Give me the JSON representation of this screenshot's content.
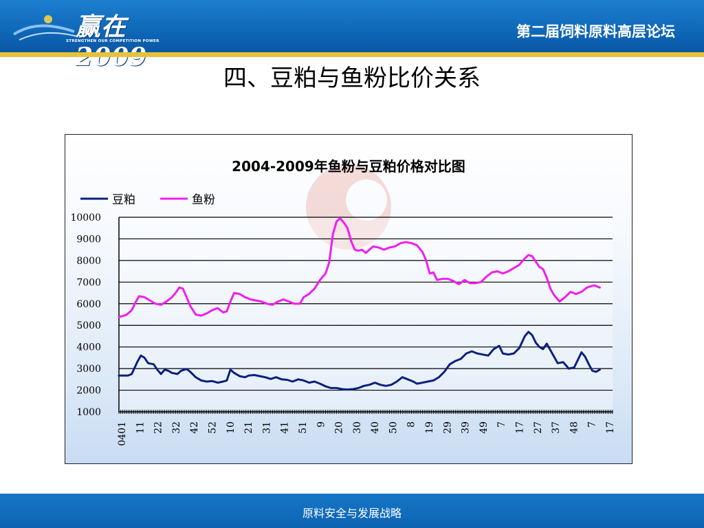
{
  "header": {
    "logo_text": "赢在2009",
    "logo_subtitle": "STRENGTHEN OUR COMPETITION POWER",
    "forum_title": "第二届饲料原料高层论坛"
  },
  "slide": {
    "title": "四、豆粕与鱼粉比价关系"
  },
  "footer": {
    "text": "原料安全与发展战略"
  },
  "colors": {
    "header_blue": "#1371c2",
    "accent_gold": "#e6c23a",
    "soybean_meal": "#0b1f7e",
    "fish_meal": "#f21cf0"
  },
  "chart_data": {
    "type": "line",
    "title": "2004-2009年鱼粉与豆粕价格对比图",
    "legend_position": "top-left",
    "grid": true,
    "ylim": [
      1000,
      10000
    ],
    "yticks": [
      1000,
      2000,
      3000,
      4000,
      5000,
      6000,
      7000,
      8000,
      9000,
      10000
    ],
    "xtick_labels": [
      "0401",
      "11",
      "22",
      "32",
      "42",
      "52",
      "10",
      "21",
      "31",
      "41",
      "51",
      "9",
      "20",
      "30",
      "40",
      "50",
      "8",
      "19",
      "29",
      "39",
      "49",
      "7",
      "17",
      "27",
      "37",
      "48",
      "7",
      "17"
    ],
    "xlim": [
      0,
      270
    ],
    "series": [
      {
        "name": "豆粕",
        "color": "#0b1f7e",
        "points": [
          [
            0,
            2680
          ],
          [
            5,
            2680
          ],
          [
            7,
            2750
          ],
          [
            10,
            3300
          ],
          [
            12,
            3600
          ],
          [
            14,
            3500
          ],
          [
            16,
            3250
          ],
          [
            19,
            3200
          ],
          [
            21,
            2950
          ],
          [
            23,
            2750
          ],
          [
            25,
            2950
          ],
          [
            27,
            2900
          ],
          [
            29,
            2800
          ],
          [
            32,
            2750
          ],
          [
            34,
            2900
          ],
          [
            37,
            2980
          ],
          [
            39,
            2850
          ],
          [
            42,
            2600
          ],
          [
            45,
            2450
          ],
          [
            48,
            2400
          ],
          [
            51,
            2420
          ],
          [
            54,
            2350
          ],
          [
            57,
            2400
          ],
          [
            59,
            2450
          ],
          [
            61,
            2950
          ],
          [
            63,
            2800
          ],
          [
            66,
            2650
          ],
          [
            69,
            2600
          ],
          [
            71,
            2680
          ],
          [
            74,
            2700
          ],
          [
            77,
            2650
          ],
          [
            80,
            2600
          ],
          [
            83,
            2520
          ],
          [
            86,
            2600
          ],
          [
            89,
            2500
          ],
          [
            92,
            2480
          ],
          [
            95,
            2400
          ],
          [
            98,
            2500
          ],
          [
            101,
            2450
          ],
          [
            104,
            2350
          ],
          [
            107,
            2400
          ],
          [
            110,
            2300
          ],
          [
            113,
            2180
          ],
          [
            116,
            2100
          ],
          [
            119,
            2100
          ],
          [
            122,
            2050
          ],
          [
            125,
            2030
          ],
          [
            128,
            2050
          ],
          [
            131,
            2100
          ],
          [
            134,
            2200
          ],
          [
            137,
            2250
          ],
          [
            140,
            2350
          ],
          [
            143,
            2250
          ],
          [
            146,
            2200
          ],
          [
            149,
            2250
          ],
          [
            152,
            2400
          ],
          [
            155,
            2600
          ],
          [
            158,
            2500
          ],
          [
            161,
            2400
          ],
          [
            163,
            2300
          ],
          [
            166,
            2350
          ],
          [
            169,
            2400
          ],
          [
            172,
            2450
          ],
          [
            175,
            2600
          ],
          [
            178,
            2850
          ],
          [
            181,
            3200
          ],
          [
            184,
            3350
          ],
          [
            187,
            3450
          ],
          [
            190,
            3700
          ],
          [
            193,
            3800
          ],
          [
            196,
            3700
          ],
          [
            199,
            3650
          ],
          [
            202,
            3600
          ],
          [
            205,
            3900
          ],
          [
            208,
            4050
          ],
          [
            210,
            3700
          ],
          [
            213,
            3650
          ],
          [
            216,
            3700
          ],
          [
            219,
            3950
          ],
          [
            222,
            4500
          ],
          [
            224,
            4700
          ],
          [
            226,
            4550
          ],
          [
            228,
            4200
          ],
          [
            230,
            4000
          ],
          [
            232,
            3900
          ],
          [
            234,
            4150
          ],
          [
            236,
            3850
          ],
          [
            238,
            3550
          ],
          [
            240,
            3250
          ],
          [
            243,
            3300
          ],
          [
            246,
            3000
          ],
          [
            249,
            3050
          ],
          [
            251,
            3400
          ],
          [
            253,
            3750
          ],
          [
            255,
            3550
          ],
          [
            257,
            3200
          ],
          [
            259,
            2900
          ],
          [
            261,
            2850
          ],
          [
            263,
            2950
          ]
        ]
      },
      {
        "name": "鱼粉",
        "color": "#f21cf0",
        "points": [
          [
            0,
            5380
          ],
          [
            4,
            5480
          ],
          [
            7,
            5700
          ],
          [
            9,
            6050
          ],
          [
            11,
            6350
          ],
          [
            14,
            6300
          ],
          [
            17,
            6150
          ],
          [
            20,
            6000
          ],
          [
            23,
            5950
          ],
          [
            26,
            6100
          ],
          [
            29,
            6300
          ],
          [
            31,
            6500
          ],
          [
            33,
            6750
          ],
          [
            35,
            6700
          ],
          [
            37,
            6300
          ],
          [
            39,
            5900
          ],
          [
            42,
            5500
          ],
          [
            45,
            5450
          ],
          [
            48,
            5550
          ],
          [
            51,
            5700
          ],
          [
            54,
            5800
          ],
          [
            57,
            5600
          ],
          [
            59,
            5650
          ],
          [
            61,
            6100
          ],
          [
            63,
            6500
          ],
          [
            66,
            6450
          ],
          [
            69,
            6300
          ],
          [
            72,
            6200
          ],
          [
            75,
            6150
          ],
          [
            78,
            6100
          ],
          [
            81,
            6000
          ],
          [
            84,
            5950
          ],
          [
            87,
            6100
          ],
          [
            90,
            6200
          ],
          [
            93,
            6100
          ],
          [
            96,
            6000
          ],
          [
            99,
            6000
          ],
          [
            101,
            6300
          ],
          [
            104,
            6450
          ],
          [
            107,
            6700
          ],
          [
            110,
            7100
          ],
          [
            113,
            7400
          ],
          [
            115,
            7900
          ],
          [
            117,
            9200
          ],
          [
            119,
            9800
          ],
          [
            121,
            9950
          ],
          [
            123,
            9750
          ],
          [
            125,
            9500
          ],
          [
            127,
            8900
          ],
          [
            129,
            8500
          ],
          [
            131,
            8450
          ],
          [
            133,
            8500
          ],
          [
            135,
            8350
          ],
          [
            137,
            8500
          ],
          [
            139,
            8650
          ],
          [
            142,
            8600
          ],
          [
            145,
            8500
          ],
          [
            148,
            8600
          ],
          [
            151,
            8650
          ],
          [
            154,
            8800
          ],
          [
            157,
            8850
          ],
          [
            160,
            8800
          ],
          [
            163,
            8700
          ],
          [
            166,
            8400
          ],
          [
            168,
            8000
          ],
          [
            170,
            7400
          ],
          [
            172,
            7450
          ],
          [
            174,
            7100
          ],
          [
            177,
            7150
          ],
          [
            180,
            7150
          ],
          [
            183,
            7050
          ],
          [
            186,
            6900
          ],
          [
            189,
            7100
          ],
          [
            192,
            6950
          ],
          [
            195,
            6950
          ],
          [
            198,
            7000
          ],
          [
            201,
            7250
          ],
          [
            204,
            7450
          ],
          [
            207,
            7500
          ],
          [
            210,
            7400
          ],
          [
            213,
            7500
          ],
          [
            216,
            7650
          ],
          [
            219,
            7800
          ],
          [
            222,
            8100
          ],
          [
            224,
            8250
          ],
          [
            226,
            8200
          ],
          [
            228,
            7950
          ],
          [
            230,
            7700
          ],
          [
            232,
            7600
          ],
          [
            234,
            7200
          ],
          [
            236,
            6700
          ],
          [
            238,
            6400
          ],
          [
            241,
            6100
          ],
          [
            244,
            6300
          ],
          [
            247,
            6550
          ],
          [
            250,
            6450
          ],
          [
            253,
            6550
          ],
          [
            256,
            6750
          ],
          [
            258,
            6800
          ],
          [
            260,
            6850
          ],
          [
            263,
            6750
          ]
        ]
      }
    ]
  }
}
